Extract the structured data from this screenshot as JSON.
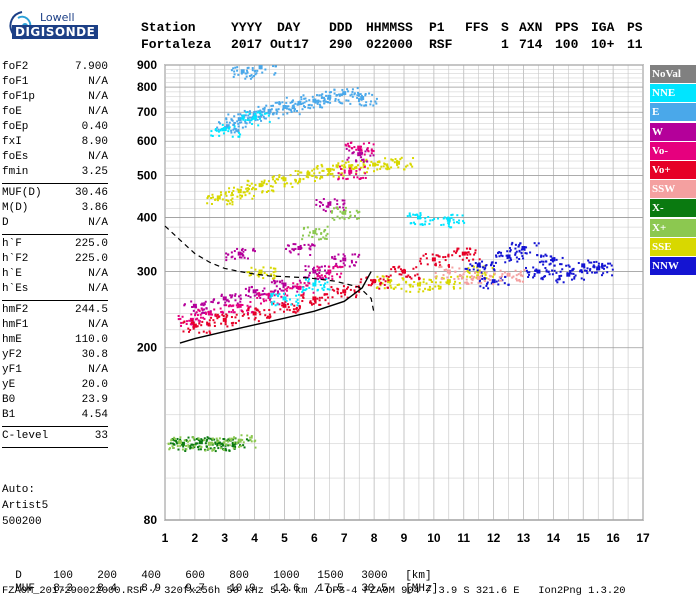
{
  "logo": {
    "line1": "Lowell",
    "line2": "DIGISONDE"
  },
  "header": {
    "labels": [
      "Station",
      "YYYY",
      "DAY",
      "DDD",
      "HHMMSS",
      "P1",
      "FFS",
      "S",
      "AXN",
      "PPS",
      "IGA",
      "PS"
    ],
    "values": [
      "Fortaleza",
      "2017",
      "Out17",
      "290",
      "022000",
      "RSF",
      "1",
      "714",
      "100",
      "10+",
      "11"
    ]
  },
  "params_a": [
    {
      "k": "foF2",
      "v": "7.900"
    },
    {
      "k": "foF1",
      "v": "N/A"
    },
    {
      "k": "foF1p",
      "v": "N/A"
    },
    {
      "k": "foE",
      "v": "N/A"
    },
    {
      "k": "foEp",
      "v": "0.40"
    },
    {
      "k": "fxI",
      "v": "8.90"
    },
    {
      "k": "foEs",
      "v": "N/A"
    },
    {
      "k": "fmin",
      "v": "3.25"
    }
  ],
  "params_b": [
    {
      "k": "MUF(D)",
      "v": "30.46"
    },
    {
      "k": "M(D)",
      "v": "3.86"
    },
    {
      "k": "D",
      "v": "N/A"
    }
  ],
  "params_c": [
    {
      "k": "h`F",
      "v": "225.0"
    },
    {
      "k": "h`F2",
      "v": "225.0"
    },
    {
      "k": "h`E",
      "v": "N/A"
    },
    {
      "k": "h`Es",
      "v": "N/A"
    }
  ],
  "params_d": [
    {
      "k": "hmF2",
      "v": "244.5"
    },
    {
      "k": "hmF1",
      "v": "N/A"
    },
    {
      "k": "hmE",
      "v": "110.0"
    },
    {
      "k": "yF2",
      "v": "30.8"
    },
    {
      "k": "yF1",
      "v": "N/A"
    },
    {
      "k": "yE",
      "v": "20.0"
    },
    {
      "k": "B0",
      "v": "23.9"
    },
    {
      "k": "B1",
      "v": "4.54"
    }
  ],
  "clevel": {
    "k": "C-level",
    "v": "33"
  },
  "auto": {
    "line1": "Auto:",
    "line2": "Artist5",
    "line3": "500200"
  },
  "legend": [
    {
      "label": "NoVal",
      "bg": "#808080",
      "fg": "#ffffff"
    },
    {
      "label": "NNE",
      "bg": "#00e5ff",
      "fg": "#ffffff"
    },
    {
      "label": "E",
      "bg": "#4aa8ea",
      "fg": "#ffffff"
    },
    {
      "label": "W",
      "bg": "#b4009a",
      "fg": "#ffffff"
    },
    {
      "label": "Vo-",
      "bg": "#e6007e",
      "fg": "#ffffff"
    },
    {
      "label": "Vo+",
      "bg": "#e60026",
      "fg": "#ffffff"
    },
    {
      "label": "SSW",
      "bg": "#f4a0a0",
      "fg": "#ffffff"
    },
    {
      "label": "X-",
      "bg": "#0a7a10",
      "fg": "#ffffff"
    },
    {
      "label": "X+",
      "bg": "#8cc850",
      "fg": "#ffffff"
    },
    {
      "label": "SSE",
      "bg": "#d8d800",
      "fg": "#ffffff"
    },
    {
      "label": "NNW",
      "bg": "#1414d2",
      "fg": "#ffffff"
    }
  ],
  "footer": {
    "d_label": "D",
    "d_values": [
      "100",
      "200",
      "400",
      "600",
      "800",
      "1000",
      "1500",
      "3000",
      "[km]"
    ],
    "muf_label": "MUF",
    "muf_values": [
      "8.3",
      "8.4",
      "8.9",
      "9.7",
      "10.9",
      "12.6",
      "17.5",
      "30.5",
      "[MHz]"
    ],
    "info": "FZA0M_2017290022000.RSF / 320fx256h 50 kHz 5.0 km / DPS-4 FZA0M 904 / 3.9 S 321.6 E   Ion2Png 1.3.20"
  },
  "chart_data": {
    "type": "scatter",
    "title": "",
    "xlabel": "",
    "ylabel": "",
    "xlim": [
      1,
      17
    ],
    "ylim": [
      80,
      900
    ],
    "x_ticks": [
      1,
      2,
      3,
      4,
      5,
      6,
      7,
      8,
      9,
      10,
      11,
      12,
      13,
      14,
      15,
      16,
      17
    ],
    "y_ticks": [
      80,
      200,
      300,
      400,
      500,
      600,
      700,
      800,
      900
    ],
    "y_scale": "log",
    "grid": true,
    "legend_position": "right",
    "series": [
      {
        "name": "E",
        "color": "#4aa8ea",
        "points": [
          [
            3.1,
            650
          ],
          [
            3.5,
            675
          ],
          [
            4.0,
            690
          ],
          [
            4.5,
            705
          ],
          [
            5.0,
            720
          ],
          [
            5.5,
            735
          ],
          [
            6.0,
            745
          ],
          [
            6.5,
            760
          ],
          [
            7.0,
            775
          ],
          [
            7.6,
            755
          ],
          [
            3.6,
            870
          ],
          [
            4.2,
            890
          ]
        ]
      },
      {
        "name": "SSE",
        "color": "#d8d800",
        "points": [
          [
            2.8,
            445
          ],
          [
            3.5,
            460
          ],
          [
            4.2,
            475
          ],
          [
            5.0,
            490
          ],
          [
            5.8,
            505
          ],
          [
            6.5,
            515
          ],
          [
            7.2,
            525
          ],
          [
            8.0,
            530
          ],
          [
            8.8,
            535
          ],
          [
            4.2,
            300
          ],
          [
            8.5,
            285
          ],
          [
            9.5,
            280
          ],
          [
            10.5,
            285
          ],
          [
            11.5,
            300
          ]
        ]
      },
      {
        "name": "W",
        "color": "#b4009a",
        "points": [
          [
            2.0,
            250
          ],
          [
            3.0,
            260
          ],
          [
            4.0,
            270
          ],
          [
            5.0,
            280
          ],
          [
            6.0,
            300
          ],
          [
            7.0,
            320
          ],
          [
            6.5,
            430
          ],
          [
            7.5,
            560
          ],
          [
            3.5,
            330
          ],
          [
            5.5,
            340
          ]
        ]
      },
      {
        "name": "Vo-",
        "color": "#e6007e",
        "points": [
          [
            1.9,
            232
          ],
          [
            2.5,
            240
          ],
          [
            3.5,
            250
          ],
          [
            4.5,
            262
          ],
          [
            5.5,
            275
          ],
          [
            6.5,
            300
          ],
          [
            7.5,
            580
          ],
          [
            7.2,
            510
          ]
        ]
      },
      {
        "name": "Vo+",
        "color": "#e60026",
        "points": [
          [
            2.0,
            225
          ],
          [
            3.0,
            232
          ],
          [
            4.0,
            240
          ],
          [
            5.0,
            250
          ],
          [
            6.0,
            260
          ],
          [
            7.0,
            270
          ],
          [
            8.0,
            285
          ],
          [
            9.0,
            300
          ],
          [
            10.0,
            320
          ],
          [
            11.0,
            330
          ]
        ]
      },
      {
        "name": "NNE",
        "color": "#00e5ff",
        "points": [
          [
            3.0,
            640
          ],
          [
            4.0,
            680
          ],
          [
            9.5,
            400
          ],
          [
            10.5,
            395
          ],
          [
            5.0,
            260
          ],
          [
            6.0,
            280
          ]
        ]
      },
      {
        "name": "X-",
        "color": "#0a7a10",
        "points": [
          [
            1.6,
            120
          ],
          [
            2.2,
            121
          ],
          [
            2.8,
            120
          ],
          [
            3.3,
            120
          ]
        ]
      },
      {
        "name": "X+",
        "color": "#8cc850",
        "points": [
          [
            1.5,
            121
          ],
          [
            2.5,
            120
          ],
          [
            3.5,
            122
          ],
          [
            7.0,
            410
          ],
          [
            6.0,
            370
          ]
        ]
      },
      {
        "name": "NNW",
        "color": "#1414d2",
        "points": [
          [
            11.5,
            310
          ],
          [
            12.5,
            325
          ],
          [
            13.0,
            340
          ],
          [
            13.5,
            300
          ],
          [
            14.0,
            320
          ],
          [
            14.5,
            295
          ],
          [
            15.0,
            310
          ],
          [
            15.5,
            305
          ],
          [
            12.0,
            285
          ]
        ]
      },
      {
        "name": "SSW",
        "color": "#f4a0a0",
        "points": [
          [
            10.5,
            300
          ],
          [
            11.5,
            290
          ],
          [
            12.5,
            295
          ]
        ]
      }
    ],
    "trace": [
      [
        1.5,
        205
      ],
      [
        2.0,
        210
      ],
      [
        3.0,
        218
      ],
      [
        4.0,
        226
      ],
      [
        5.0,
        234
      ],
      [
        6.0,
        243
      ],
      [
        7.0,
        256
      ],
      [
        7.6,
        275
      ],
      [
        7.9,
        300
      ]
    ],
    "dashed_profile": [
      [
        1.0,
        382
      ],
      [
        1.5,
        355
      ],
      [
        2.0,
        330
      ],
      [
        2.5,
        315
      ],
      [
        3.0,
        305
      ],
      [
        3.5,
        300
      ],
      [
        4.0,
        296
      ],
      [
        4.5,
        293
      ],
      [
        5.0,
        292
      ],
      [
        5.8,
        290
      ],
      [
        6.7,
        285
      ],
      [
        7.5,
        276
      ],
      [
        7.9,
        260
      ],
      [
        8.0,
        240
      ]
    ]
  }
}
